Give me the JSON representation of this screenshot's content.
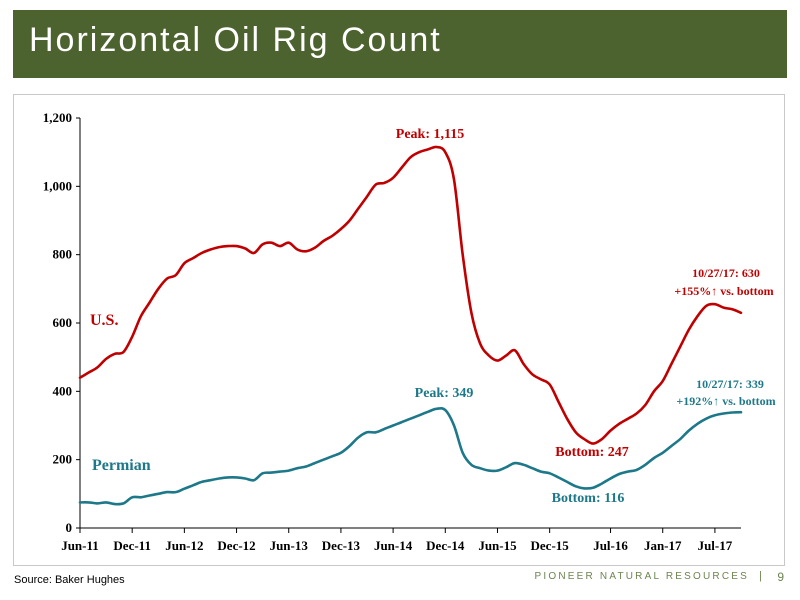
{
  "slide": {
    "title": "Horizontal Oil Rig Count",
    "source": "Source: Baker Hughes",
    "brand": "PIONEER NATURAL RESOURCES",
    "separator": "|",
    "page_number": "9"
  },
  "colors": {
    "title_bar": "#4c6330",
    "us_series": "#c00000",
    "permian_series": "#1d7889",
    "brand_text": "#6d8450"
  },
  "chart_data": {
    "type": "line",
    "title": "",
    "xlabel": "",
    "ylabel": "",
    "ylim": [
      0,
      1200
    ],
    "y_ticks": [
      0,
      200,
      400,
      600,
      800,
      1000,
      1200
    ],
    "y_tick_labels": [
      "0",
      "200",
      "400",
      "600",
      "800",
      "1,000",
      "1,200"
    ],
    "x_ticks": [
      "2011-06",
      "2011-12",
      "2012-06",
      "2012-12",
      "2013-06",
      "2013-12",
      "2014-06",
      "2014-12",
      "2015-06",
      "2015-12",
      "2016-07",
      "2017-01",
      "2017-07"
    ],
    "x_tick_labels": [
      "Jun-11",
      "Dec-11",
      "Jun-12",
      "Dec-12",
      "Jun-13",
      "Dec-13",
      "Jun-14",
      "Dec-14",
      "Jun-15",
      "Dec-15",
      "Jul-16",
      "Jan-17",
      "Jul-17"
    ],
    "x_range": [
      "2011-06",
      "2017-10"
    ],
    "grid": false,
    "series": [
      {
        "name": "U.S.",
        "color": "#c00000",
        "points": [
          [
            "2011-06",
            440
          ],
          [
            "2011-07",
            455
          ],
          [
            "2011-08",
            470
          ],
          [
            "2011-09",
            495
          ],
          [
            "2011-10",
            510
          ],
          [
            "2011-11",
            515
          ],
          [
            "2011-12",
            560
          ],
          [
            "2012-01",
            620
          ],
          [
            "2012-02",
            660
          ],
          [
            "2012-03",
            700
          ],
          [
            "2012-04",
            730
          ],
          [
            "2012-05",
            740
          ],
          [
            "2012-06",
            775
          ],
          [
            "2012-07",
            790
          ],
          [
            "2012-08",
            805
          ],
          [
            "2012-09",
            815
          ],
          [
            "2012-10",
            822
          ],
          [
            "2012-11",
            825
          ],
          [
            "2012-12",
            825
          ],
          [
            "2013-01",
            818
          ],
          [
            "2013-02",
            805
          ],
          [
            "2013-03",
            830
          ],
          [
            "2013-04",
            835
          ],
          [
            "2013-05",
            825
          ],
          [
            "2013-06",
            835
          ],
          [
            "2013-07",
            815
          ],
          [
            "2013-08",
            810
          ],
          [
            "2013-09",
            820
          ],
          [
            "2013-10",
            840
          ],
          [
            "2013-11",
            855
          ],
          [
            "2013-12",
            875
          ],
          [
            "2014-01",
            900
          ],
          [
            "2014-02",
            935
          ],
          [
            "2014-03",
            970
          ],
          [
            "2014-04",
            1005
          ],
          [
            "2014-05",
            1010
          ],
          [
            "2014-06",
            1025
          ],
          [
            "2014-07",
            1055
          ],
          [
            "2014-08",
            1085
          ],
          [
            "2014-09",
            1100
          ],
          [
            "2014-10",
            1108
          ],
          [
            "2014-11",
            1115
          ],
          [
            "2014-12",
            1100
          ],
          [
            "2015-01",
            1020
          ],
          [
            "2015-02",
            800
          ],
          [
            "2015-03",
            630
          ],
          [
            "2015-04",
            540
          ],
          [
            "2015-05",
            505
          ],
          [
            "2015-06",
            490
          ],
          [
            "2015-07",
            505
          ],
          [
            "2015-08",
            520
          ],
          [
            "2015-09",
            480
          ],
          [
            "2015-10",
            450
          ],
          [
            "2015-11",
            435
          ],
          [
            "2015-12",
            420
          ],
          [
            "2016-01",
            370
          ],
          [
            "2016-02",
            320
          ],
          [
            "2016-03",
            280
          ],
          [
            "2016-04",
            260
          ],
          [
            "2016-05",
            247
          ],
          [
            "2016-06",
            260
          ],
          [
            "2016-07",
            285
          ],
          [
            "2016-08",
            305
          ],
          [
            "2016-09",
            320
          ],
          [
            "2016-10",
            335
          ],
          [
            "2016-11",
            360
          ],
          [
            "2016-12",
            400
          ],
          [
            "2017-01",
            430
          ],
          [
            "2017-02",
            480
          ],
          [
            "2017-03",
            530
          ],
          [
            "2017-04",
            580
          ],
          [
            "2017-05",
            620
          ],
          [
            "2017-06",
            650
          ],
          [
            "2017-07",
            655
          ],
          [
            "2017-08",
            645
          ],
          [
            "2017-09",
            640
          ],
          [
            "2017-10",
            630
          ]
        ]
      },
      {
        "name": "Permian",
        "color": "#1d7889",
        "points": [
          [
            "2011-06",
            75
          ],
          [
            "2011-07",
            75
          ],
          [
            "2011-08",
            72
          ],
          [
            "2011-09",
            75
          ],
          [
            "2011-10",
            70
          ],
          [
            "2011-11",
            72
          ],
          [
            "2011-12",
            90
          ],
          [
            "2012-01",
            90
          ],
          [
            "2012-02",
            95
          ],
          [
            "2012-03",
            100
          ],
          [
            "2012-04",
            105
          ],
          [
            "2012-05",
            105
          ],
          [
            "2012-06",
            115
          ],
          [
            "2012-07",
            125
          ],
          [
            "2012-08",
            135
          ],
          [
            "2012-09",
            140
          ],
          [
            "2012-10",
            145
          ],
          [
            "2012-11",
            148
          ],
          [
            "2012-12",
            148
          ],
          [
            "2013-01",
            145
          ],
          [
            "2013-02",
            140
          ],
          [
            "2013-03",
            160
          ],
          [
            "2013-04",
            162
          ],
          [
            "2013-05",
            165
          ],
          [
            "2013-06",
            168
          ],
          [
            "2013-07",
            175
          ],
          [
            "2013-08",
            180
          ],
          [
            "2013-09",
            190
          ],
          [
            "2013-10",
            200
          ],
          [
            "2013-11",
            210
          ],
          [
            "2013-12",
            220
          ],
          [
            "2014-01",
            240
          ],
          [
            "2014-02",
            265
          ],
          [
            "2014-03",
            280
          ],
          [
            "2014-04",
            280
          ],
          [
            "2014-05",
            290
          ],
          [
            "2014-06",
            300
          ],
          [
            "2014-07",
            310
          ],
          [
            "2014-08",
            320
          ],
          [
            "2014-09",
            330
          ],
          [
            "2014-10",
            340
          ],
          [
            "2014-11",
            349
          ],
          [
            "2014-12",
            345
          ],
          [
            "2015-01",
            300
          ],
          [
            "2015-02",
            220
          ],
          [
            "2015-03",
            185
          ],
          [
            "2015-04",
            175
          ],
          [
            "2015-05",
            168
          ],
          [
            "2015-06",
            168
          ],
          [
            "2015-07",
            178
          ],
          [
            "2015-08",
            190
          ],
          [
            "2015-09",
            185
          ],
          [
            "2015-10",
            175
          ],
          [
            "2015-11",
            165
          ],
          [
            "2015-12",
            160
          ],
          [
            "2016-01",
            148
          ],
          [
            "2016-02",
            135
          ],
          [
            "2016-03",
            122
          ],
          [
            "2016-04",
            116
          ],
          [
            "2016-05",
            118
          ],
          [
            "2016-06",
            130
          ],
          [
            "2016-07",
            145
          ],
          [
            "2016-08",
            158
          ],
          [
            "2016-09",
            165
          ],
          [
            "2016-10",
            170
          ],
          [
            "2016-11",
            185
          ],
          [
            "2016-12",
            205
          ],
          [
            "2017-01",
            220
          ],
          [
            "2017-02",
            240
          ],
          [
            "2017-03",
            260
          ],
          [
            "2017-04",
            285
          ],
          [
            "2017-05",
            305
          ],
          [
            "2017-06",
            320
          ],
          [
            "2017-07",
            330
          ],
          [
            "2017-08",
            335
          ],
          [
            "2017-09",
            338
          ],
          [
            "2017-10",
            339
          ]
        ]
      }
    ],
    "annotations": {
      "us_peak": {
        "text": "Peak: 1,115",
        "x": "2014-11",
        "y": 1115
      },
      "us_bottom": {
        "text": "Bottom: 247",
        "x": "2016-05",
        "y": 247
      },
      "us_latest_date": "10/27/17: 630",
      "us_latest_change": "+155%↑ vs. bottom",
      "permian_peak": {
        "text": "Peak: 349",
        "x": "2014-11",
        "y": 349
      },
      "permian_bottom": {
        "text": "Bottom: 116",
        "x": "2016-04",
        "y": 116
      },
      "permian_latest_date": "10/27/17: 339",
      "permian_latest_change": "+192%↑ vs. bottom",
      "us_label": "U.S.",
      "permian_label": "Permian"
    }
  }
}
